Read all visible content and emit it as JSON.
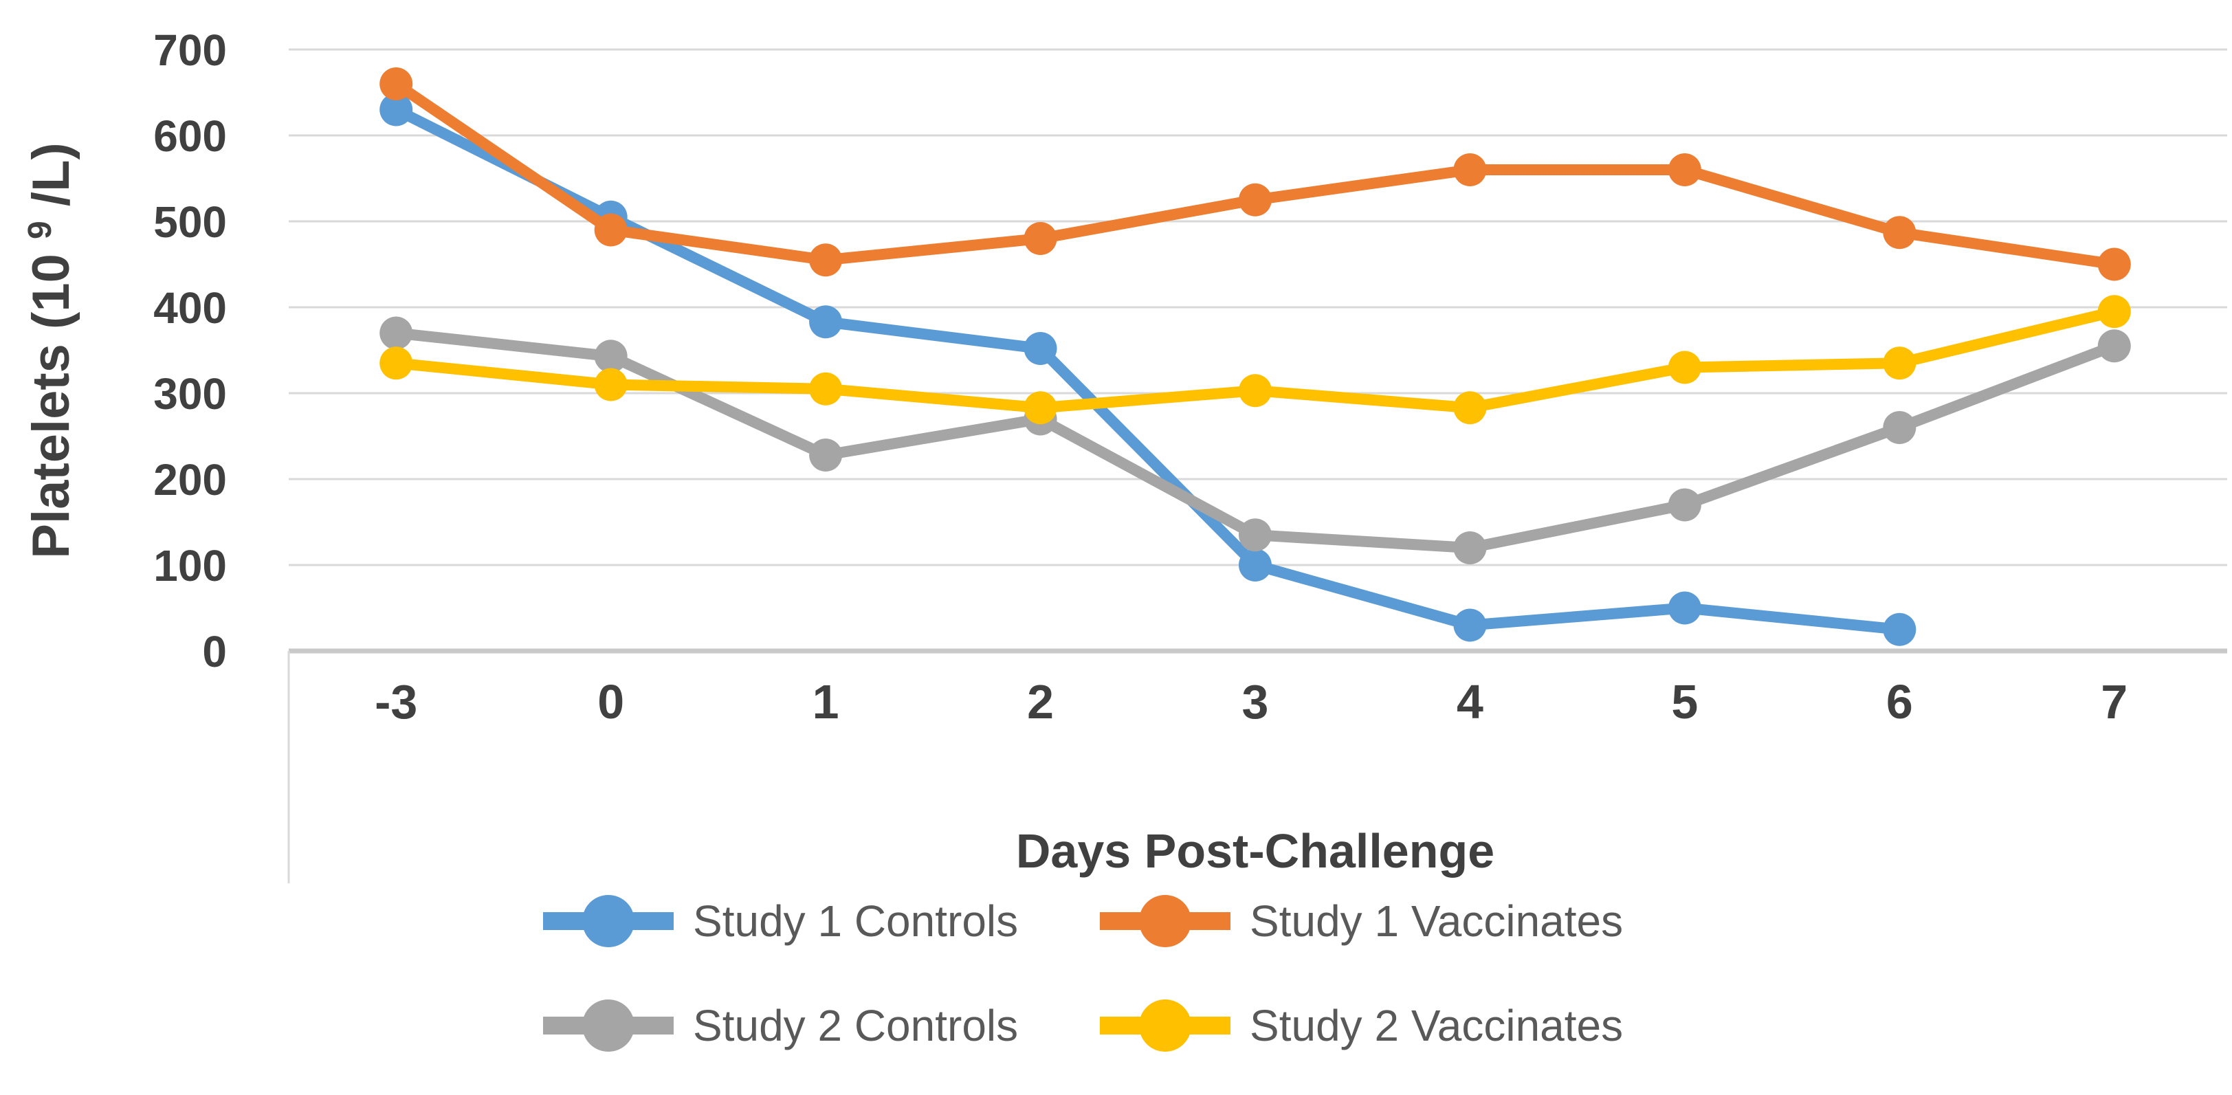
{
  "chart_data": {
    "type": "line",
    "title": "",
    "xlabel": "Days Post-Challenge",
    "ylabel": {
      "text": "Platelets (10⁹/L)",
      "prefix": "Platelets (10",
      "superscript": "9",
      "suffix": "/L)"
    },
    "categories": [
      "-3",
      "0",
      "1",
      "2",
      "3",
      "4",
      "5",
      "6",
      "7"
    ],
    "x_axis_type": "category",
    "ylim": [
      0,
      700
    ],
    "ytick_step": 100,
    "ytick_labels": [
      "0",
      "100",
      "200",
      "300",
      "400",
      "500",
      "600",
      "700"
    ],
    "grid": "horizontal",
    "legend_position": "bottom",
    "legend_rows": 2,
    "legend_columns": 2,
    "series": [
      {
        "name": "Study 1 Controls",
        "color": "#5B9BD5",
        "values": [
          630,
          505,
          383,
          352,
          100,
          30,
          50,
          25,
          null
        ]
      },
      {
        "name": "Study 1 Vaccinates",
        "color": "#ED7D31",
        "values": [
          660,
          490,
          455,
          480,
          525,
          560,
          560,
          487,
          450
        ]
      },
      {
        "name": "Study 2 Controls",
        "color": "#A5A5A5",
        "values": [
          370,
          343,
          228,
          270,
          135,
          120,
          170,
          260,
          355
        ]
      },
      {
        "name": "Study 2 Vaccinates",
        "color": "#FFC000",
        "values": [
          335,
          310,
          305,
          283,
          303,
          283,
          330,
          335,
          395
        ]
      }
    ],
    "colors": {
      "gridline": "#D9D9D9",
      "zero_axis_line": "#C9C9C9",
      "tick_text": "#404040",
      "axis_title_text": "#404040",
      "legend_text": "#595959",
      "background": "#FFFFFF"
    }
  }
}
